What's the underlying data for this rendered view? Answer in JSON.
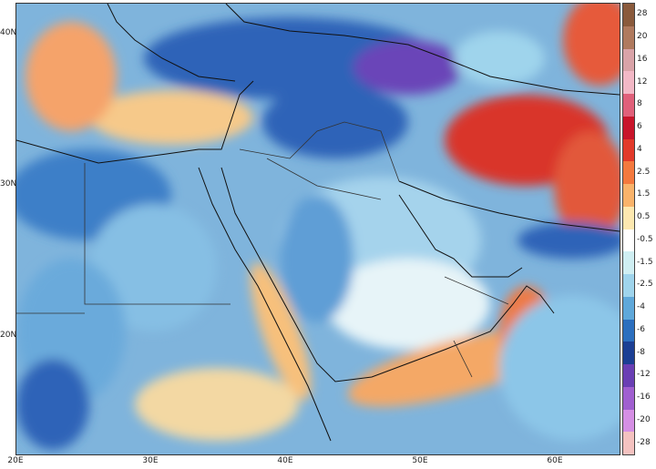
{
  "map": {
    "x_axis_labels": [
      "20E",
      "30E",
      "40E",
      "50E",
      "60E"
    ],
    "y_axis_labels": [
      "40N",
      "30N",
      "20N"
    ],
    "background_color": "#7fb4dc"
  },
  "colorbar": {
    "levels": [
      {
        "label": "28",
        "color": "#8a5a3c"
      },
      {
        "label": "20",
        "color": "#b07a5e"
      },
      {
        "label": "16",
        "color": "#d9a3a8"
      },
      {
        "label": "12",
        "color": "#f2b8c6"
      },
      {
        "label": "8",
        "color": "#e0607a"
      },
      {
        "label": "6",
        "color": "#c8142a"
      },
      {
        "label": "4",
        "color": "#e23a2a"
      },
      {
        "label": "2.5",
        "color": "#f4793e"
      },
      {
        "label": "1.5",
        "color": "#f9b36b"
      },
      {
        "label": "0.5",
        "color": "#fde8b0"
      },
      {
        "label": "-0.5",
        "color": "#ffffff"
      },
      {
        "label": "-1.5",
        "color": "#cfeef2"
      },
      {
        "label": "-2.5",
        "color": "#9fd4ec"
      },
      {
        "label": "-4",
        "color": "#5fa8da"
      },
      {
        "label": "-6",
        "color": "#2c6fbf"
      },
      {
        "label": "-8",
        "color": "#1c3f94"
      },
      {
        "label": "-12",
        "color": "#6a3fb4"
      },
      {
        "label": "-16",
        "color": "#a05fd0"
      },
      {
        "label": "-20",
        "color": "#d58fe4"
      },
      {
        "label": "-28",
        "color": "#f4c2c0"
      }
    ]
  }
}
